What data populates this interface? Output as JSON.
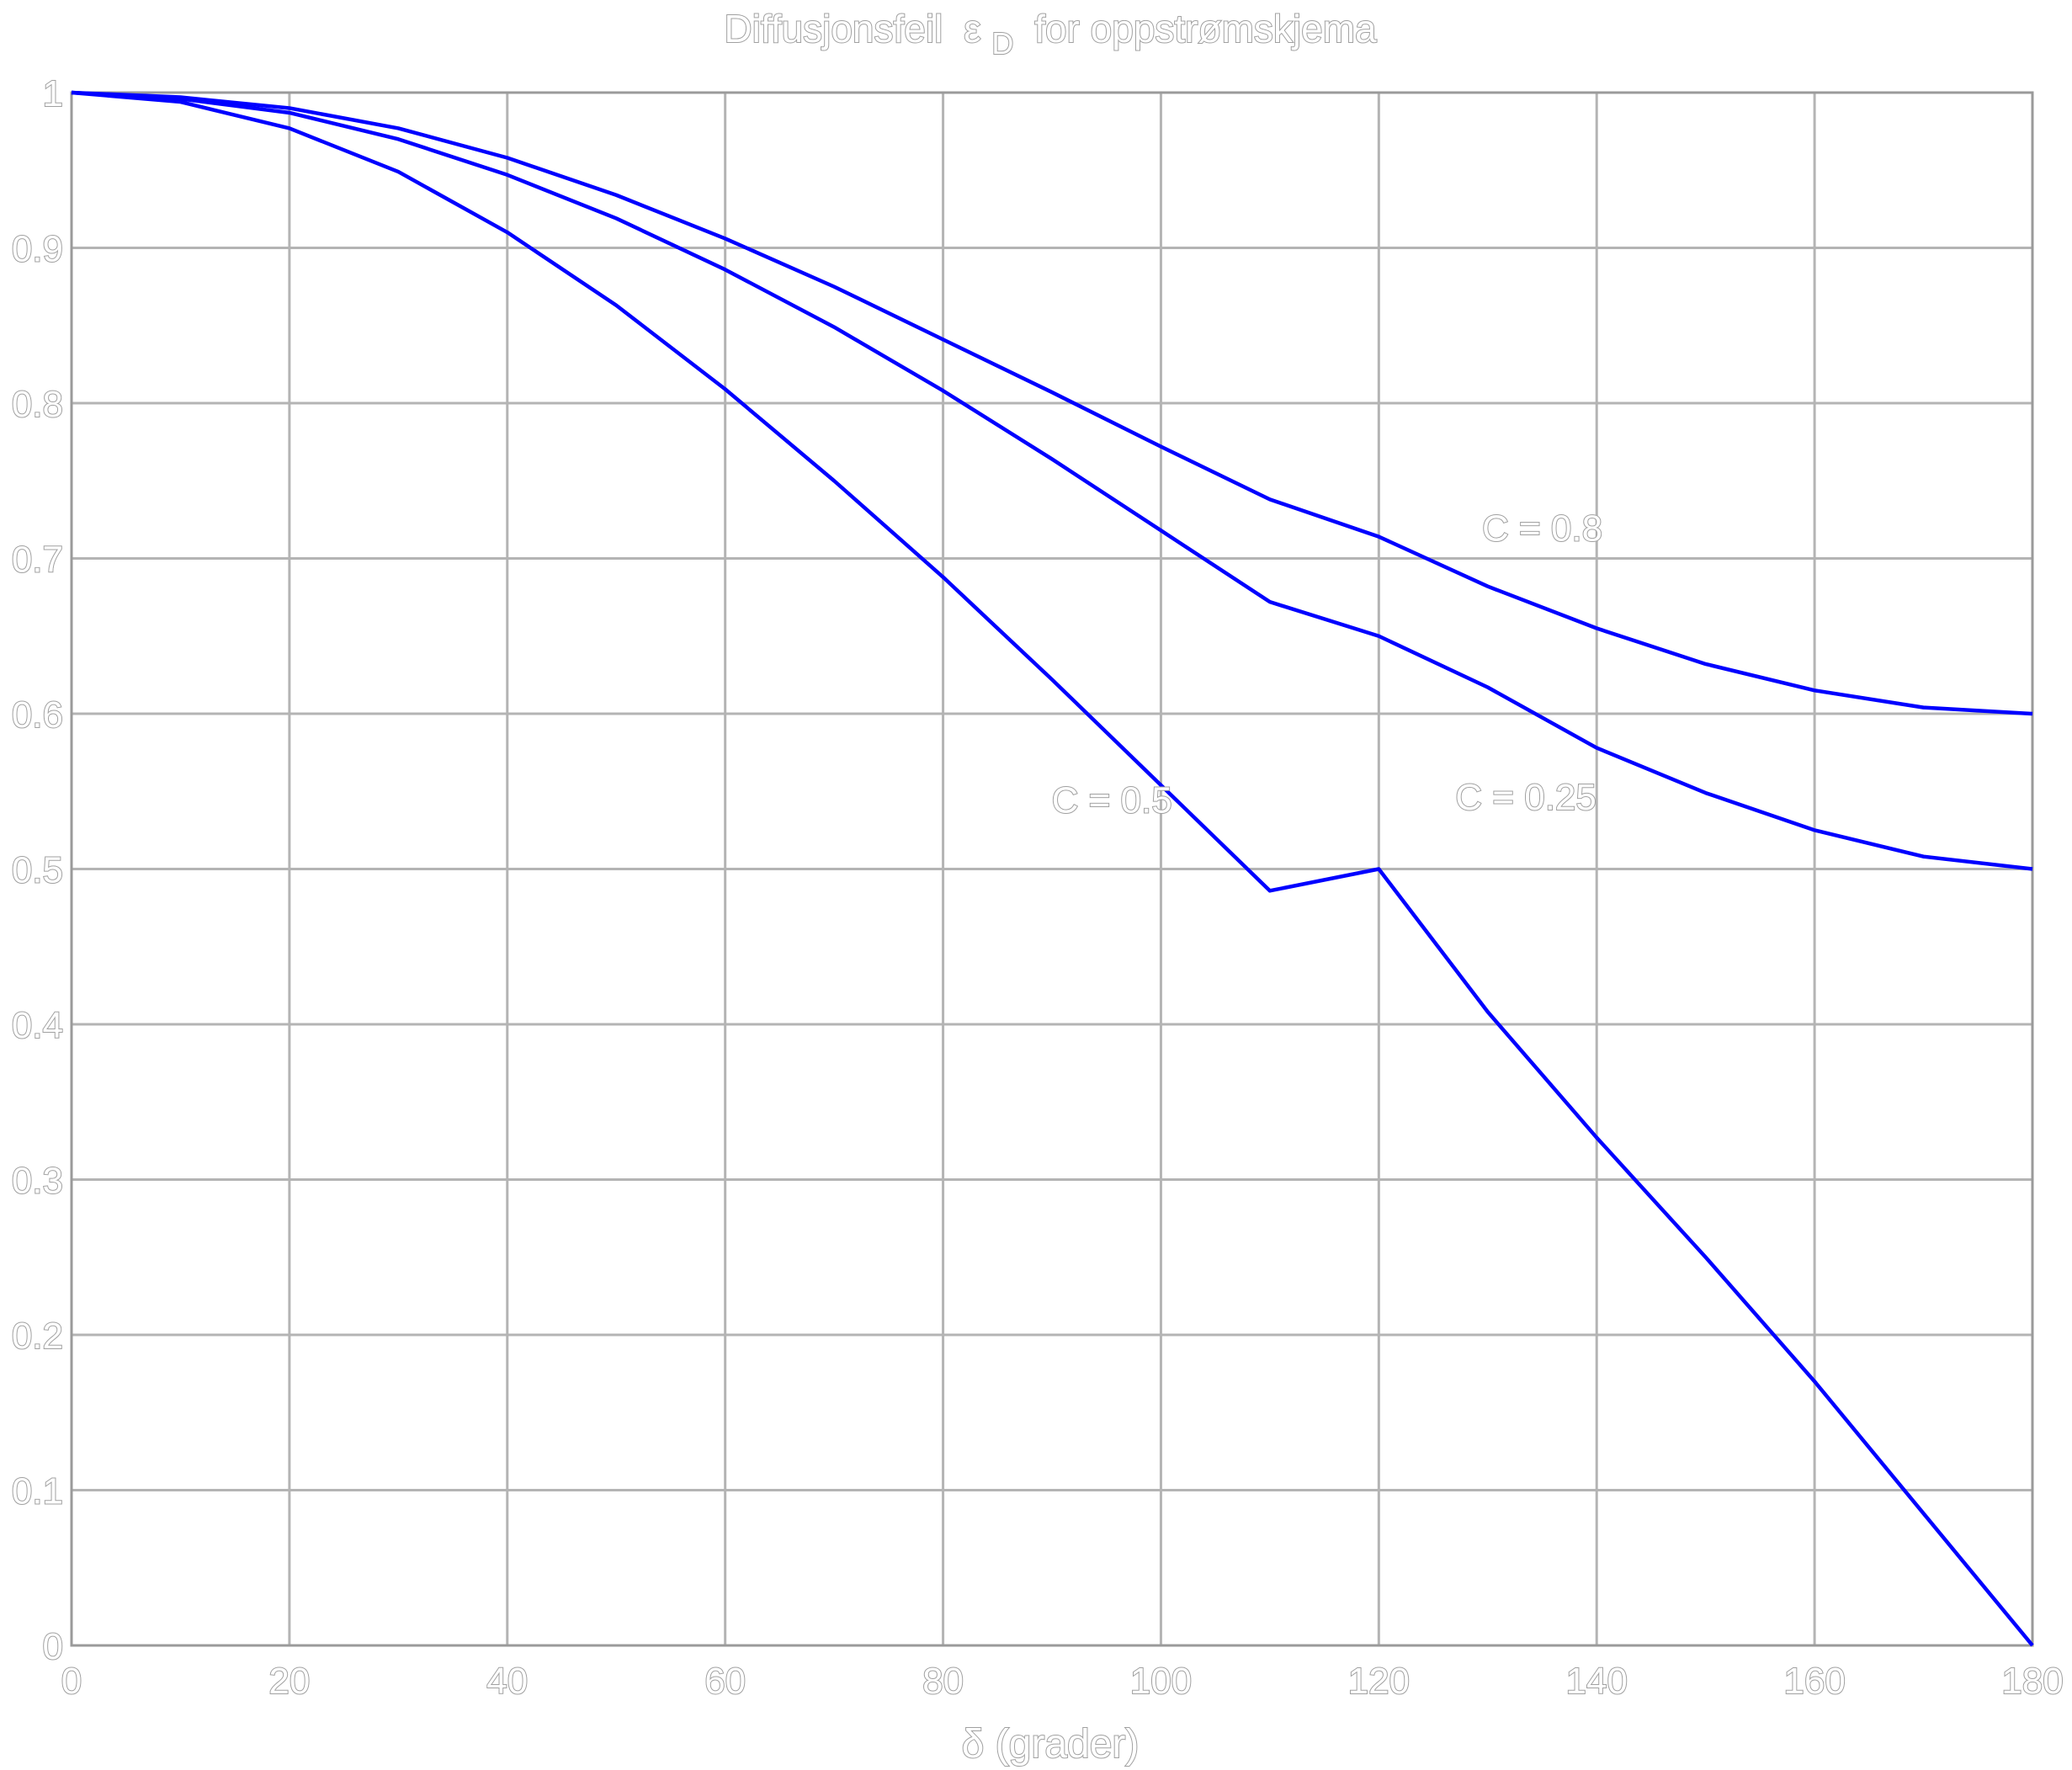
{
  "chart_data": {
    "type": "line",
    "title": "Diffusjonsfeil",
    "title_symbol": "ε",
    "title_symbol_sub": "D",
    "title_suffix": "for oppstrømskjema",
    "xlabel": "δ (grader)",
    "ylabel": "",
    "xlim": [
      0,
      180
    ],
    "ylim": [
      0,
      1
    ],
    "grid": true,
    "x_ticks": [
      "0",
      "20",
      "40",
      "60",
      "80",
      "100",
      "120",
      "140",
      "160",
      "180"
    ],
    "y_ticks": [
      "0",
      "0.1",
      "0.2",
      "0.3",
      "0.4",
      "0.5",
      "0.6",
      "0.7",
      "0.8",
      "0.9",
      "1"
    ],
    "line_color": "#0000ff",
    "x": [
      0,
      10,
      20,
      30,
      40,
      50,
      60,
      70,
      80,
      90,
      100,
      110,
      120,
      130,
      140,
      150,
      160,
      170,
      180
    ],
    "series": [
      {
        "name": "C = 0.8",
        "values": [
          1.0,
          0.997,
          0.99,
          0.977,
          0.958,
          0.934,
          0.906,
          0.875,
          0.841,
          0.807,
          0.772,
          0.738,
          0.714,
          0.682,
          0.655,
          0.632,
          0.615,
          0.604,
          0.6
        ]
      },
      {
        "name": "C = 0.25",
        "values": [
          1.0,
          0.996,
          0.987,
          0.97,
          0.947,
          0.919,
          0.886,
          0.849,
          0.808,
          0.764,
          0.718,
          0.672,
          0.65,
          0.617,
          0.578,
          0.549,
          0.525,
          0.508,
          0.5
        ]
      },
      {
        "name": "C = 0.5",
        "values": [
          1.0,
          0.994,
          0.977,
          0.949,
          0.91,
          0.863,
          0.809,
          0.75,
          0.688,
          0.622,
          0.554,
          0.486,
          0.5,
          0.408,
          0.327,
          0.25,
          0.17,
          0.085,
          0.0
        ]
      }
    ],
    "annotations": [
      {
        "text": "C = 0.8",
        "x": 135.0,
        "y": 0.72
      },
      {
        "text": "C = 0.5",
        "x": 95.5,
        "y": 0.545
      },
      {
        "text": "C = 0.25",
        "x": 133.5,
        "y": 0.547
      }
    ]
  }
}
